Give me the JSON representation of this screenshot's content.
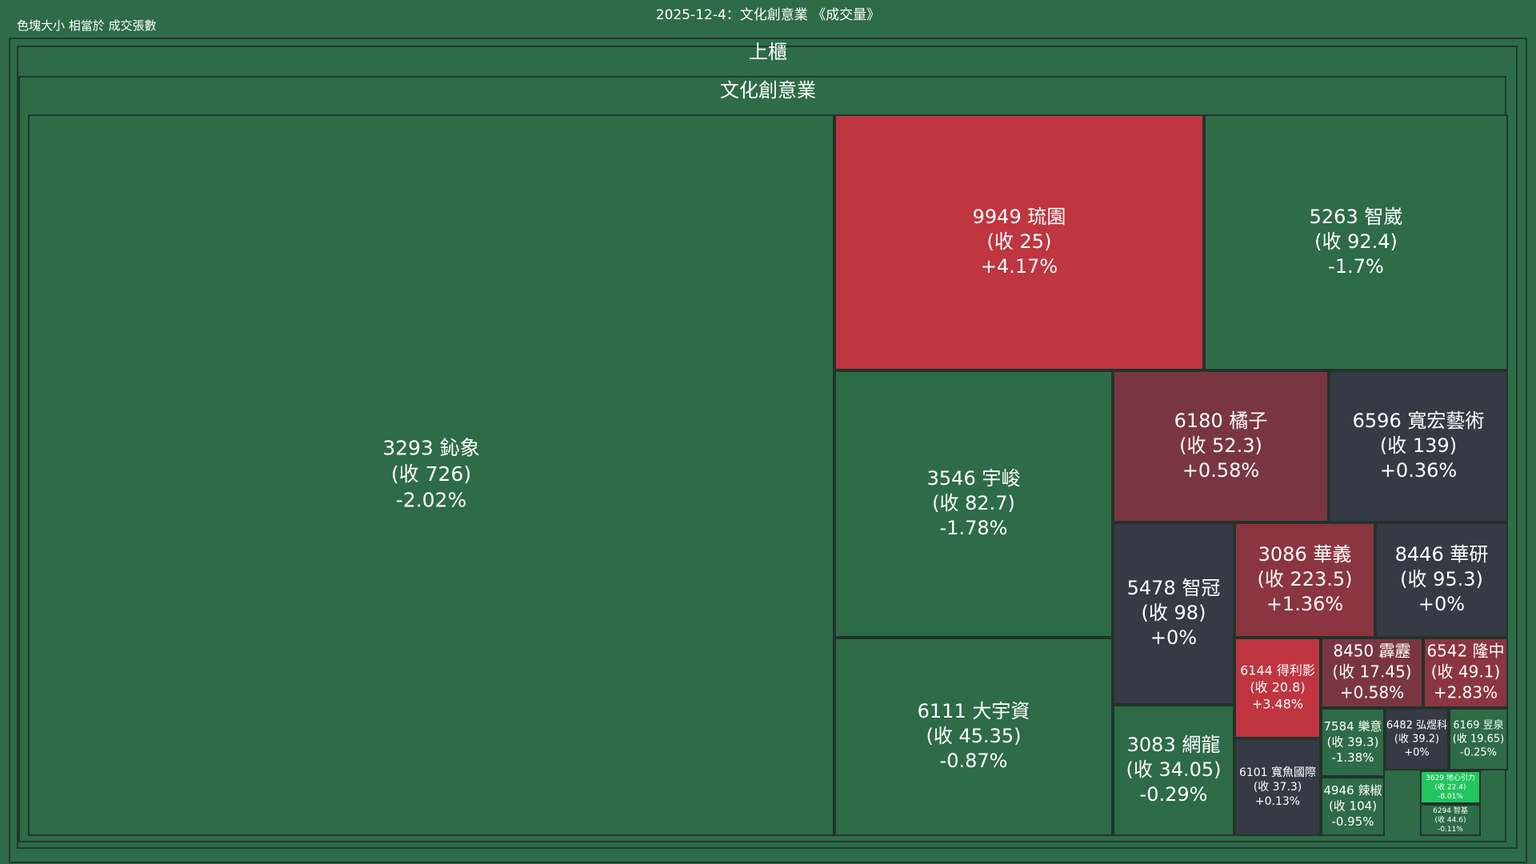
{
  "header": {
    "title": "2025-12-4：文化創意業 《成交量》",
    "note": "色塊大小 相當於 成交張數"
  },
  "colors": {
    "background": "#2e6b47",
    "frame": "#2e6b47",
    "border": "#1f3a2d",
    "down": "#2e6b47",
    "flat": "#363a45",
    "up_small": "#7a3640",
    "up_mid": "#8b3540",
    "up_strong": "#bf3540",
    "limit_down": "#22c55e"
  },
  "chart_data": {
    "type": "treemap",
    "size_metric": "成交張數",
    "market": "上櫃",
    "sector": "文化創意業",
    "stocks": [
      {
        "code": "3293",
        "name": "鈊象",
        "close": "726",
        "change": "-2.02%",
        "change_pct": -2.02
      },
      {
        "code": "9949",
        "name": "琉園",
        "close": "25",
        "change": "+4.17%",
        "change_pct": 4.17
      },
      {
        "code": "5263",
        "name": "智崴",
        "close": "92.4",
        "change": "-1.7%",
        "change_pct": -1.7
      },
      {
        "code": "3546",
        "name": "宇峻",
        "close": "82.7",
        "change": "-1.78%",
        "change_pct": -1.78
      },
      {
        "code": "6111",
        "name": "大宇資",
        "close": "45.35",
        "change": "-0.87%",
        "change_pct": -0.87
      },
      {
        "code": "6180",
        "name": "橘子",
        "close": "52.3",
        "change": "+0.58%",
        "change_pct": 0.58
      },
      {
        "code": "6596",
        "name": "寬宏藝術",
        "close": "139",
        "change": "+0.36%",
        "change_pct": 0.36
      },
      {
        "code": "5478",
        "name": "智冠",
        "close": "98",
        "change": "+0%",
        "change_pct": 0
      },
      {
        "code": "3086",
        "name": "華義",
        "close": "223.5",
        "change": "+1.36%",
        "change_pct": 1.36
      },
      {
        "code": "8446",
        "name": "華研",
        "close": "95.3",
        "change": "+0%",
        "change_pct": 0
      },
      {
        "code": "3083",
        "name": "網龍",
        "close": "34.05",
        "change": "-0.29%",
        "change_pct": -0.29
      },
      {
        "code": "6144",
        "name": "得利影",
        "close": "20.8",
        "change": "+3.48%",
        "change_pct": 3.48
      },
      {
        "code": "8450",
        "name": "霹靂",
        "close": "17.45",
        "change": "+0.58%",
        "change_pct": 0.58
      },
      {
        "code": "6542",
        "name": "隆中",
        "close": "49.1",
        "change": "+2.83%",
        "change_pct": 2.83
      },
      {
        "code": "6101",
        "name": "寬魚國際",
        "close": "37.3",
        "change": "+0.13%",
        "change_pct": 0.13
      },
      {
        "code": "7584",
        "name": "樂意",
        "close": "39.3",
        "change": "-1.38%",
        "change_pct": -1.38
      },
      {
        "code": "6482",
        "name": "弘煜科",
        "close": "39.2",
        "change": "+0%",
        "change_pct": 0
      },
      {
        "code": "6169",
        "name": "昱泉",
        "close": "19.65",
        "change": "-0.25%",
        "change_pct": -0.25
      },
      {
        "code": "4946",
        "name": "辣椒",
        "close": "104",
        "change": "-0.95%",
        "change_pct": -0.95
      },
      {
        "code": "3629",
        "name": "地心引力",
        "close": "22.4",
        "change": "-8.01%",
        "change_pct": -8.01
      },
      {
        "code": "6294",
        "name": "智基",
        "close": "44.6",
        "change": "-0.11%",
        "change_pct": -0.11
      }
    ]
  }
}
